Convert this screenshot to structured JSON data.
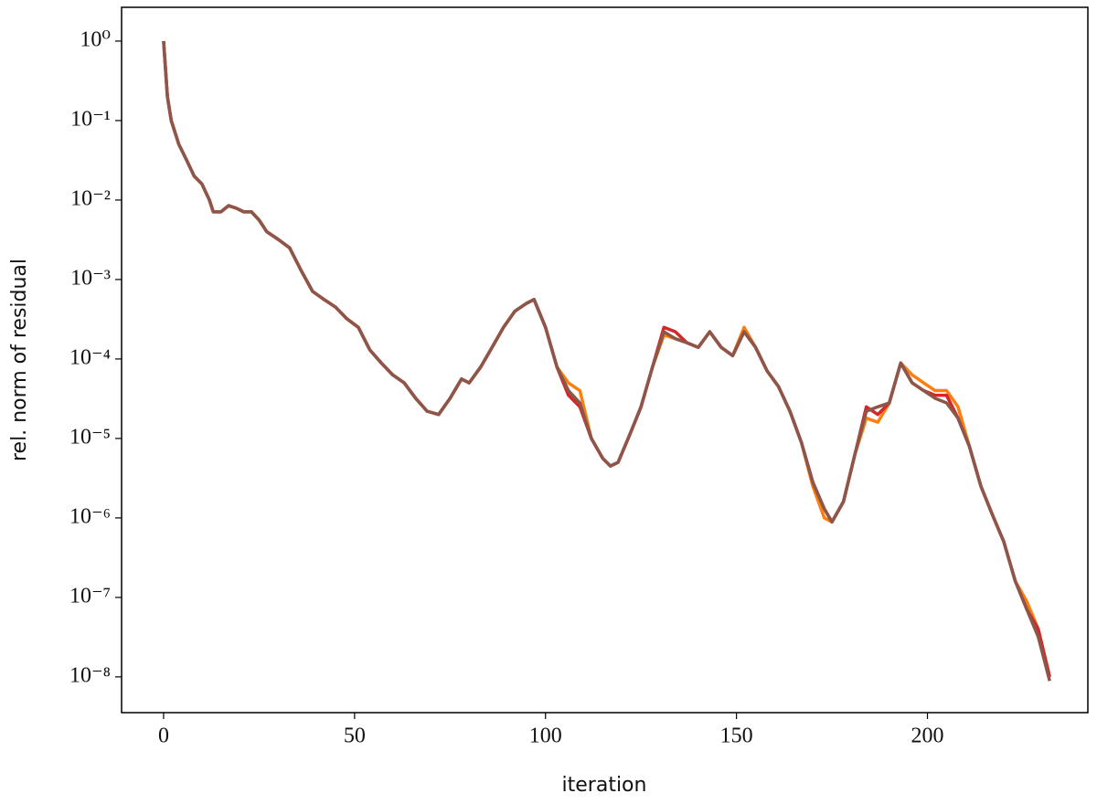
{
  "chart_data": {
    "type": "line",
    "log_y": true,
    "xlabel": "iteration",
    "ylabel": "rel. norm of residual",
    "x": [
      0,
      1,
      2,
      4,
      6,
      8,
      10,
      12,
      13,
      15,
      17,
      19,
      21,
      23,
      25,
      27,
      30,
      33,
      36,
      39,
      42,
      45,
      48,
      51,
      54,
      57,
      60,
      63,
      66,
      69,
      72,
      75,
      78,
      80,
      83,
      86,
      89,
      92,
      95,
      97,
      100,
      103,
      106,
      109,
      112,
      115,
      117,
      119,
      122,
      125,
      128,
      131,
      134,
      137,
      140,
      143,
      146,
      149,
      152,
      155,
      158,
      161,
      164,
      167,
      170,
      173,
      175,
      178,
      181,
      184,
      187,
      190,
      193,
      196,
      199,
      202,
      205,
      208,
      211,
      214,
      217,
      220,
      223,
      226,
      229,
      232
    ],
    "series": [
      {
        "color": "#ff7f0e",
        "values": [
          1,
          0.2,
          0.1,
          0.05,
          0.032,
          0.02,
          0.016,
          0.01,
          0.0071,
          0.0071,
          0.0085,
          0.0079,
          0.0071,
          0.0071,
          0.0056,
          0.004,
          0.0032,
          0.0025,
          0.0013,
          0.00071,
          0.00056,
          0.00045,
          0.00032,
          0.00025,
          0.00013,
          8.9e-05,
          6.3e-05,
          5e-05,
          3.2e-05,
          2.2e-05,
          2e-05,
          3.2e-05,
          5.6e-05,
          5e-05,
          7.9e-05,
          0.00014,
          0.00025,
          0.0004,
          0.0005,
          0.00056,
          0.00025,
          7.9e-05,
          5e-05,
          4e-05,
          1e-05,
          5.6e-06,
          4.5e-06,
          5e-06,
          1.1e-05,
          2.5e-05,
          7.9e-05,
          0.0002,
          0.00018,
          0.00016,
          0.00014,
          0.00022,
          0.00014,
          0.00011,
          0.00025,
          0.00014,
          7.1e-05,
          4.5e-05,
          2.2e-05,
          8.9e-06,
          2.5e-06,
          1e-06,
          8.9e-07,
          1.6e-06,
          6.3e-06,
          1.8e-05,
          1.6e-05,
          2.8e-05,
          8.9e-05,
          6.3e-05,
          5e-05,
          4e-05,
          4e-05,
          2.5e-05,
          7.9e-06,
          2.5e-06,
          1.1e-06,
          5e-07,
          1.6e-07,
          8.9e-08,
          4e-08,
          1e-08
        ]
      },
      {
        "color": "#d62728",
        "values": [
          1,
          0.2,
          0.1,
          0.05,
          0.032,
          0.02,
          0.016,
          0.01,
          0.0071,
          0.0071,
          0.0085,
          0.0079,
          0.0071,
          0.0071,
          0.0056,
          0.004,
          0.0032,
          0.0025,
          0.0013,
          0.00071,
          0.00056,
          0.00045,
          0.00032,
          0.00025,
          0.00013,
          8.9e-05,
          6.3e-05,
          5e-05,
          3.2e-05,
          2.2e-05,
          2e-05,
          3.2e-05,
          5.6e-05,
          5e-05,
          7.9e-05,
          0.00014,
          0.00025,
          0.0004,
          0.0005,
          0.00056,
          0.00025,
          7.9e-05,
          3.5e-05,
          2.5e-05,
          1e-05,
          5.6e-06,
          4.5e-06,
          5e-06,
          1.1e-05,
          2.5e-05,
          7.9e-05,
          0.00025,
          0.00022,
          0.00016,
          0.00014,
          0.00022,
          0.00014,
          0.00011,
          0.00022,
          0.00014,
          7.1e-05,
          4.5e-05,
          2.2e-05,
          8.9e-06,
          2.8e-06,
          1.3e-06,
          8.9e-07,
          1.6e-06,
          6.3e-06,
          2.5e-05,
          2e-05,
          2.8e-05,
          8.9e-05,
          5e-05,
          4e-05,
          3.5e-05,
          3.5e-05,
          1.8e-05,
          7.9e-06,
          2.5e-06,
          1.1e-06,
          5e-07,
          1.6e-07,
          7.1e-08,
          4e-08,
          1e-08
        ]
      },
      {
        "color": "#8c564b",
        "values": [
          1,
          0.2,
          0.1,
          0.05,
          0.032,
          0.02,
          0.016,
          0.01,
          0.0071,
          0.0071,
          0.0085,
          0.0079,
          0.0071,
          0.0071,
          0.0056,
          0.004,
          0.0032,
          0.0025,
          0.0013,
          0.00071,
          0.00056,
          0.00045,
          0.00032,
          0.00025,
          0.00013,
          8.9e-05,
          6.3e-05,
          5e-05,
          3.2e-05,
          2.2e-05,
          2e-05,
          3.2e-05,
          5.6e-05,
          5e-05,
          7.9e-05,
          0.00014,
          0.00025,
          0.0004,
          0.0005,
          0.00056,
          0.00025,
          7.9e-05,
          4e-05,
          2.8e-05,
          1e-05,
          5.6e-06,
          4.5e-06,
          5e-06,
          1.1e-05,
          2.5e-05,
          7.9e-05,
          0.00022,
          0.00018,
          0.00016,
          0.00014,
          0.00022,
          0.00014,
          0.00011,
          0.00022,
          0.00014,
          7.1e-05,
          4.5e-05,
          2.2e-05,
          8.9e-06,
          2.8e-06,
          1.3e-06,
          8.9e-07,
          1.6e-06,
          6.3e-06,
          2.2e-05,
          2.5e-05,
          2.8e-05,
          8.9e-05,
          5e-05,
          4e-05,
          3.2e-05,
          2.8e-05,
          1.8e-05,
          7.9e-06,
          2.5e-06,
          1.1e-06,
          5e-07,
          1.6e-07,
          7.1e-08,
          3.2e-08,
          8.9e-09
        ]
      }
    ],
    "xlim": [
      -11,
      242
    ],
    "xticks": [
      0,
      50,
      100,
      150,
      200
    ],
    "ylim": [
      3.55e-09,
      2.66
    ],
    "yticks": [
      {
        "value": 1e-08,
        "label": "10⁻⁸"
      },
      {
        "value": 1e-07,
        "label": "10⁻⁷"
      },
      {
        "value": 1e-06,
        "label": "10⁻⁶"
      },
      {
        "value": 1e-05,
        "label": "10⁻⁵"
      },
      {
        "value": 0.0001,
        "label": "10⁻⁴"
      },
      {
        "value": 0.001,
        "label": "10⁻³"
      },
      {
        "value": 0.01,
        "label": "10⁻²"
      },
      {
        "value": 0.1,
        "label": "10⁻¹"
      },
      {
        "value": 1,
        "label": "10⁰"
      }
    ],
    "grid": false
  }
}
